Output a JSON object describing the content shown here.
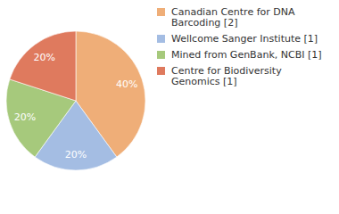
{
  "chart_data": {
    "type": "pie",
    "categories": [
      "Canadian Centre for DNA Barcoding [2]",
      "Wellcome Sanger Institute [1]",
      "Mined from GenBank, NCBI [1]",
      "Centre for Biodiversity Genomics [1]"
    ],
    "values": [
      40,
      20,
      20,
      20
    ],
    "value_labels": [
      "40%",
      "20%",
      "20%",
      "20%"
    ],
    "colors": [
      "#efae78",
      "#a4bde3",
      "#a6c97c",
      "#df7a5e"
    ],
    "data_labels": true,
    "legend": "top-right"
  }
}
